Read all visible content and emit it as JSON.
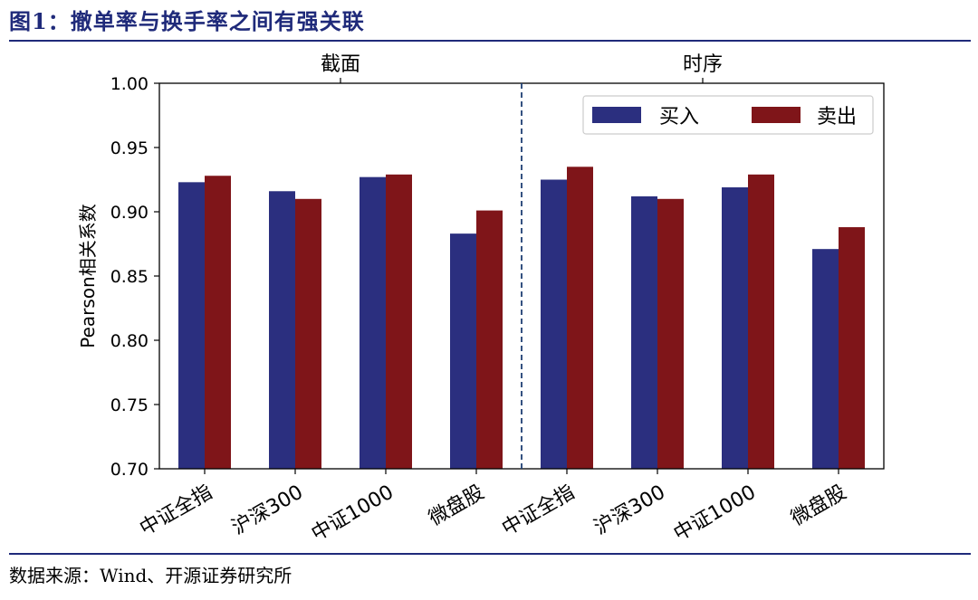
{
  "figure": {
    "title": "图1：撤单率与换手率之间有强关联",
    "source": "数据来源：Wind、开源证券研究所"
  },
  "colors": {
    "buy": "#2b2f7f",
    "sell": "#7f1519",
    "title": "#1f2a7a",
    "divider": "#1f3f73"
  },
  "chart_data": {
    "type": "bar",
    "title": "",
    "xlabel": "",
    "ylabel": "Pearson相关系数",
    "ylim": [
      0.7,
      1.0
    ],
    "yticks": [
      "0.70",
      "0.75",
      "0.80",
      "0.85",
      "0.90",
      "0.95",
      "1.00"
    ],
    "grid": false,
    "legend_position": "top-right",
    "panels": [
      "截面",
      "时序"
    ],
    "categories": [
      "中证全指",
      "沪深300",
      "中证1000",
      "微盘股",
      "中证全指",
      "沪深300",
      "中证1000",
      "微盘股"
    ],
    "series": [
      {
        "name": "买入",
        "values": [
          0.923,
          0.916,
          0.927,
          0.883,
          0.925,
          0.912,
          0.919,
          0.871
        ]
      },
      {
        "name": "卖出",
        "values": [
          0.928,
          0.91,
          0.929,
          0.901,
          0.935,
          0.91,
          0.929,
          0.888
        ]
      }
    ]
  }
}
